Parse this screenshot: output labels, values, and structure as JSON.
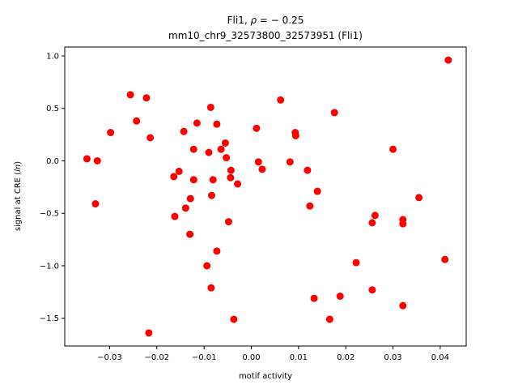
{
  "chart_data": {
    "type": "scatter",
    "title_line1": "Fli1, ",
    "title_math_rho": "ρ",
    "title_math_rest": " = − 0.25",
    "title_line2": "mm10_chr9_32573800_32573951 (Fli1)",
    "xlabel": "motif activity",
    "ylabel_prefix": "signal at CRE (",
    "ylabel_math": "ln",
    "ylabel_suffix": ")",
    "xlim": [
      -0.0395,
      0.0455
    ],
    "ylim": [
      -1.765,
      1.085
    ],
    "x_ticks": [
      -0.03,
      -0.02,
      -0.01,
      0.0,
      0.01,
      0.02,
      0.03,
      0.04
    ],
    "x_tick_labels": [
      "−0.03",
      "−0.02",
      "−0.01",
      "0.00",
      "0.01",
      "0.02",
      "0.03",
      "0.04"
    ],
    "y_ticks": [
      -1.5,
      -1.0,
      -0.5,
      0.0,
      0.5,
      1.0
    ],
    "y_tick_labels": [
      "−1.5",
      "−1.0",
      "−0.5",
      "0.0",
      "0.5",
      "1.0"
    ],
    "grid": false,
    "legend": "none",
    "marker_color": "#ff0000",
    "points": [
      {
        "x": -0.0348,
        "y": 0.02
      },
      {
        "x": -0.033,
        "y": -0.41
      },
      {
        "x": -0.0326,
        "y": 0.0
      },
      {
        "x": -0.0298,
        "y": 0.27
      },
      {
        "x": -0.0256,
        "y": 0.63
      },
      {
        "x": -0.0243,
        "y": 0.38
      },
      {
        "x": -0.0222,
        "y": 0.6
      },
      {
        "x": -0.0214,
        "y": 0.22
      },
      {
        "x": -0.0217,
        "y": -1.64
      },
      {
        "x": -0.0164,
        "y": -0.15
      },
      {
        "x": -0.0162,
        "y": -0.53
      },
      {
        "x": -0.0153,
        "y": -0.1
      },
      {
        "x": -0.0143,
        "y": 0.28
      },
      {
        "x": -0.0139,
        "y": -0.45
      },
      {
        "x": -0.013,
        "y": -0.7
      },
      {
        "x": -0.0129,
        "y": -0.36
      },
      {
        "x": -0.0122,
        "y": 0.11
      },
      {
        "x": -0.0122,
        "y": -0.18
      },
      {
        "x": -0.0115,
        "y": 0.36
      },
      {
        "x": -0.0094,
        "y": -1.0
      },
      {
        "x": -0.009,
        "y": 0.08
      },
      {
        "x": -0.0086,
        "y": 0.51
      },
      {
        "x": -0.0084,
        "y": -0.33
      },
      {
        "x": -0.0085,
        "y": -1.21
      },
      {
        "x": -0.0081,
        "y": -0.18
      },
      {
        "x": -0.0073,
        "y": 0.35
      },
      {
        "x": -0.0073,
        "y": -0.86
      },
      {
        "x": -0.0064,
        "y": 0.11
      },
      {
        "x": -0.0055,
        "y": 0.17
      },
      {
        "x": -0.0053,
        "y": 0.03
      },
      {
        "x": -0.0048,
        "y": -0.58
      },
      {
        "x": -0.0044,
        "y": -0.16
      },
      {
        "x": -0.0043,
        "y": -0.09
      },
      {
        "x": -0.0037,
        "y": -1.51
      },
      {
        "x": -0.0029,
        "y": -0.22
      },
      {
        "x": 0.0011,
        "y": 0.31
      },
      {
        "x": 0.0015,
        "y": -0.01
      },
      {
        "x": 0.0023,
        "y": -0.08
      },
      {
        "x": 0.0062,
        "y": 0.58
      },
      {
        "x": 0.0082,
        "y": -0.01
      },
      {
        "x": 0.0093,
        "y": 0.27
      },
      {
        "x": 0.0094,
        "y": 0.24
      },
      {
        "x": 0.0119,
        "y": -0.09
      },
      {
        "x": 0.0124,
        "y": -0.43
      },
      {
        "x": 0.0133,
        "y": -1.31
      },
      {
        "x": 0.014,
        "y": -0.29
      },
      {
        "x": 0.0166,
        "y": -1.51
      },
      {
        "x": 0.0176,
        "y": 0.46
      },
      {
        "x": 0.0188,
        "y": -1.29
      },
      {
        "x": 0.0222,
        "y": -0.97
      },
      {
        "x": 0.0256,
        "y": -0.59
      },
      {
        "x": 0.0256,
        "y": -1.23
      },
      {
        "x": 0.0262,
        "y": -0.52
      },
      {
        "x": 0.03,
        "y": 0.11
      },
      {
        "x": 0.0321,
        "y": -0.56
      },
      {
        "x": 0.0321,
        "y": -0.6
      },
      {
        "x": 0.0321,
        "y": -1.38
      },
      {
        "x": 0.0355,
        "y": -0.35
      },
      {
        "x": 0.041,
        "y": -0.94
      },
      {
        "x": 0.0417,
        "y": 0.96
      }
    ]
  }
}
